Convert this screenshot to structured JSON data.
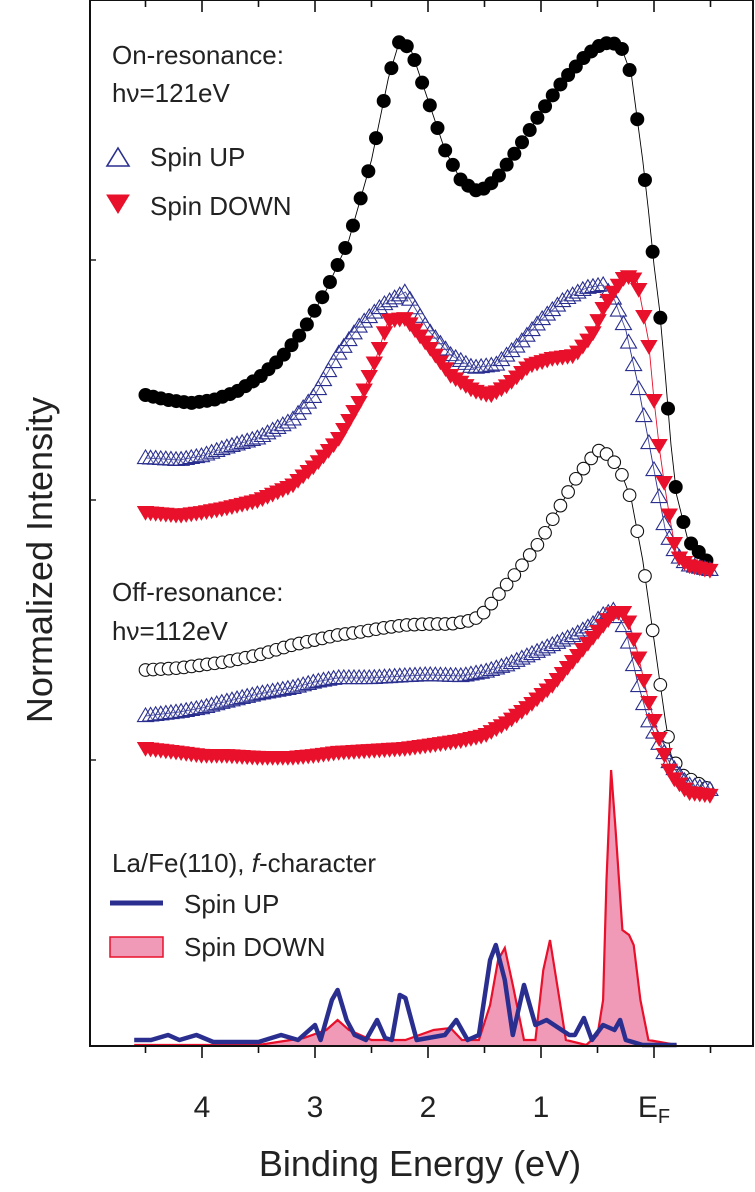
{
  "chart_data": {
    "type": "scatter",
    "xlabel": "Binding Energy (eV)",
    "ylabel": "Normalized Intensity",
    "x_reversed": true,
    "xlim": [
      4.5,
      -0.5
    ],
    "x_ticks": [
      {
        "value": 4,
        "label": "4"
      },
      {
        "value": 3,
        "label": "3"
      },
      {
        "value": 2,
        "label": "2"
      },
      {
        "value": 1,
        "label": "1"
      },
      {
        "value": 0,
        "label": "E",
        "sub": "F"
      }
    ],
    "y_units": "arbitrary (normalized intensity, vertically offset spectra)",
    "grid": false,
    "annotations": {
      "on_resonance": [
        "On-resonance:",
        "hν=121eV"
      ],
      "off_resonance": [
        "Off-resonance:",
        "hν=112eV"
      ],
      "calc_title": "La/Fe(110), ",
      "calc_title_italic": "f",
      "calc_title_end": "-character"
    },
    "legends": {
      "markers": [
        {
          "label": "Spin UP",
          "marker": "open-triangle-up",
          "color": "#2a2f8f"
        },
        {
          "label": "Spin DOWN",
          "marker": "filled-triangle-down",
          "color": "#e8102a"
        }
      ],
      "calc": [
        {
          "label": "Spin UP",
          "style": "line",
          "color": "#2a2f8f"
        },
        {
          "label": "Spin DOWN",
          "style": "filled-area",
          "color": "#f19ab8",
          "edge": "#e8102a"
        }
      ]
    },
    "colors": {
      "up": "#2a2f8f",
      "down": "#e8102a",
      "down_fill": "#f19ab8",
      "black": "#000000"
    },
    "series": [
      {
        "id": "on_total",
        "marker": "filled-circle",
        "points": [
          [
            4.5,
            395
          ],
          [
            4.3,
            400
          ],
          [
            4.1,
            403
          ],
          [
            3.9,
            400
          ],
          [
            3.7,
            392
          ],
          [
            3.5,
            378
          ],
          [
            3.3,
            358
          ],
          [
            3.1,
            330
          ],
          [
            2.9,
            290
          ],
          [
            2.7,
            240
          ],
          [
            2.5,
            160
          ],
          [
            2.35,
            78
          ],
          [
            2.25,
            40
          ],
          [
            2.15,
            50
          ],
          [
            2.0,
            100
          ],
          [
            1.85,
            150
          ],
          [
            1.7,
            182
          ],
          [
            1.55,
            192
          ],
          [
            1.4,
            180
          ],
          [
            1.2,
            148
          ],
          [
            1.0,
            112
          ],
          [
            0.8,
            80
          ],
          [
            0.6,
            55
          ],
          [
            0.45,
            43
          ],
          [
            0.3,
            44
          ],
          [
            0.2,
            75
          ],
          [
            0.1,
            160
          ],
          [
            0.05,
            210
          ],
          [
            0.0,
            265
          ],
          [
            -0.05,
            310
          ],
          [
            -0.1,
            375
          ],
          [
            -0.15,
            445
          ],
          [
            -0.2,
            495
          ],
          [
            -0.3,
            540
          ],
          [
            -0.5,
            565
          ]
        ]
      },
      {
        "id": "on_up",
        "marker": "open-triangle-up",
        "points": [
          [
            4.5,
            458
          ],
          [
            4.2,
            460
          ],
          [
            4.0,
            456
          ],
          [
            3.8,
            448
          ],
          [
            3.5,
            438
          ],
          [
            3.2,
            420
          ],
          [
            3.0,
            395
          ],
          [
            2.8,
            355
          ],
          [
            2.6,
            325
          ],
          [
            2.4,
            305
          ],
          [
            2.2,
            292
          ],
          [
            2.0,
            330
          ],
          [
            1.8,
            355
          ],
          [
            1.6,
            368
          ],
          [
            1.4,
            365
          ],
          [
            1.2,
            345
          ],
          [
            1.0,
            320
          ],
          [
            0.8,
            300
          ],
          [
            0.6,
            288
          ],
          [
            0.45,
            285
          ],
          [
            0.35,
            300
          ],
          [
            0.25,
            330
          ],
          [
            0.15,
            380
          ],
          [
            0.05,
            440
          ],
          [
            0.0,
            470
          ],
          [
            -0.05,
            500
          ],
          [
            -0.1,
            530
          ],
          [
            -0.2,
            555
          ],
          [
            -0.3,
            565
          ],
          [
            -0.5,
            570
          ]
        ]
      },
      {
        "id": "on_down",
        "marker": "filled-triangle-down",
        "points": [
          [
            4.5,
            512
          ],
          [
            4.2,
            515
          ],
          [
            4.0,
            512
          ],
          [
            3.8,
            508
          ],
          [
            3.5,
            500
          ],
          [
            3.2,
            485
          ],
          [
            3.0,
            465
          ],
          [
            2.8,
            440
          ],
          [
            2.6,
            400
          ],
          [
            2.45,
            355
          ],
          [
            2.35,
            320
          ],
          [
            2.2,
            318
          ],
          [
            2.0,
            345
          ],
          [
            1.8,
            375
          ],
          [
            1.6,
            390
          ],
          [
            1.45,
            395
          ],
          [
            1.3,
            385
          ],
          [
            1.1,
            365
          ],
          [
            0.9,
            358
          ],
          [
            0.7,
            355
          ],
          [
            0.55,
            335
          ],
          [
            0.45,
            308
          ],
          [
            0.35,
            290
          ],
          [
            0.25,
            275
          ],
          [
            0.15,
            280
          ],
          [
            0.05,
            340
          ],
          [
            0.0,
            400
          ],
          [
            -0.05,
            450
          ],
          [
            -0.1,
            490
          ],
          [
            -0.15,
            525
          ],
          [
            -0.2,
            555
          ],
          [
            -0.3,
            565
          ],
          [
            -0.5,
            570
          ]
        ]
      },
      {
        "id": "off_total",
        "marker": "open-circle",
        "points": [
          [
            4.5,
            670
          ],
          [
            4.2,
            668
          ],
          [
            4.0,
            665
          ],
          [
            3.8,
            662
          ],
          [
            3.5,
            655
          ],
          [
            3.2,
            645
          ],
          [
            3.0,
            640
          ],
          [
            2.8,
            635
          ],
          [
            2.6,
            632
          ],
          [
            2.4,
            628
          ],
          [
            2.2,
            625
          ],
          [
            2.0,
            624
          ],
          [
            1.8,
            624
          ],
          [
            1.6,
            620
          ],
          [
            1.5,
            612
          ],
          [
            1.4,
            598
          ],
          [
            1.2,
            570
          ],
          [
            1.0,
            540
          ],
          [
            0.9,
            520
          ],
          [
            0.8,
            500
          ],
          [
            0.7,
            480
          ],
          [
            0.6,
            465
          ],
          [
            0.5,
            450
          ],
          [
            0.4,
            455
          ],
          [
            0.3,
            470
          ],
          [
            0.2,
            500
          ],
          [
            0.1,
            560
          ],
          [
            0.0,
            640
          ],
          [
            -0.05,
            680
          ],
          [
            -0.1,
            720
          ],
          [
            -0.15,
            755
          ],
          [
            -0.25,
            775
          ],
          [
            -0.5,
            790
          ]
        ]
      },
      {
        "id": "off_up",
        "marker": "open-triangle-up",
        "points": [
          [
            4.5,
            716
          ],
          [
            4.2,
            712
          ],
          [
            4.0,
            708
          ],
          [
            3.8,
            702
          ],
          [
            3.5,
            694
          ],
          [
            3.2,
            688
          ],
          [
            3.0,
            682
          ],
          [
            2.8,
            678
          ],
          [
            2.5,
            678
          ],
          [
            2.2,
            676
          ],
          [
            2.0,
            675
          ],
          [
            1.7,
            676
          ],
          [
            1.5,
            672
          ],
          [
            1.3,
            665
          ],
          [
            1.1,
            655
          ],
          [
            0.9,
            645
          ],
          [
            0.7,
            635
          ],
          [
            0.55,
            625
          ],
          [
            0.45,
            615
          ],
          [
            0.35,
            610
          ],
          [
            0.25,
            630
          ],
          [
            0.15,
            680
          ],
          [
            0.05,
            720
          ],
          [
            -0.05,
            745
          ],
          [
            -0.15,
            765
          ],
          [
            -0.3,
            785
          ],
          [
            -0.5,
            790
          ]
        ]
      },
      {
        "id": "off_down",
        "marker": "filled-triangle-down",
        "points": [
          [
            4.5,
            748
          ],
          [
            4.2,
            752
          ],
          [
            4.0,
            755
          ],
          [
            3.8,
            755
          ],
          [
            3.5,
            757
          ],
          [
            3.2,
            757
          ],
          [
            3.0,
            755
          ],
          [
            2.8,
            752
          ],
          [
            2.5,
            750
          ],
          [
            2.2,
            748
          ],
          [
            2.0,
            745
          ],
          [
            1.7,
            740
          ],
          [
            1.5,
            735
          ],
          [
            1.3,
            722
          ],
          [
            1.1,
            705
          ],
          [
            0.9,
            685
          ],
          [
            0.75,
            665
          ],
          [
            0.6,
            645
          ],
          [
            0.45,
            625
          ],
          [
            0.35,
            612
          ],
          [
            0.25,
            612
          ],
          [
            0.15,
            650
          ],
          [
            0.05,
            700
          ],
          [
            -0.05,
            740
          ],
          [
            -0.15,
            775
          ],
          [
            -0.3,
            792
          ],
          [
            -0.5,
            795
          ]
        ]
      }
    ],
    "calc_up": [
      [
        4.6,
        1040
      ],
      [
        4.45,
        1040
      ],
      [
        4.3,
        1035
      ],
      [
        4.2,
        1040
      ],
      [
        4.05,
        1035
      ],
      [
        3.9,
        1042
      ],
      [
        3.5,
        1042
      ],
      [
        3.3,
        1035
      ],
      [
        3.15,
        1040
      ],
      [
        3.0,
        1025
      ],
      [
        2.95,
        1040
      ],
      [
        2.85,
        1000
      ],
      [
        2.8,
        990
      ],
      [
        2.72,
        1020
      ],
      [
        2.65,
        1035
      ],
      [
        2.55,
        1040
      ],
      [
        2.45,
        1020
      ],
      [
        2.38,
        1038
      ],
      [
        2.32,
        1040
      ],
      [
        2.25,
        995
      ],
      [
        2.2,
        998
      ],
      [
        2.1,
        1040
      ],
      [
        1.85,
        1035
      ],
      [
        1.75,
        1020
      ],
      [
        1.65,
        1040
      ],
      [
        1.55,
        1035
      ],
      [
        1.45,
        960
      ],
      [
        1.4,
        945
      ],
      [
        1.32,
        980
      ],
      [
        1.25,
        1035
      ],
      [
        1.2,
        1010
      ],
      [
        1.15,
        985
      ],
      [
        1.05,
        1025
      ],
      [
        0.95,
        1020
      ],
      [
        0.75,
        1035
      ],
      [
        0.7,
        1035
      ],
      [
        0.62,
        1018
      ],
      [
        0.55,
        1040
      ],
      [
        0.45,
        1025
      ],
      [
        0.35,
        1030
      ],
      [
        0.3,
        1020
      ],
      [
        0.25,
        1040
      ],
      [
        0.1,
        1045
      ],
      [
        -0.2,
        1045
      ]
    ],
    "calc_down": [
      [
        4.6,
        1045
      ],
      [
        3.5,
        1045
      ],
      [
        3.1,
        1038
      ],
      [
        2.9,
        1030
      ],
      [
        2.8,
        1020
      ],
      [
        2.7,
        1030
      ],
      [
        2.5,
        1040
      ],
      [
        2.2,
        1040
      ],
      [
        1.95,
        1030
      ],
      [
        1.8,
        1028
      ],
      [
        1.7,
        1040
      ],
      [
        1.55,
        1040
      ],
      [
        1.45,
        1005
      ],
      [
        1.38,
        960
      ],
      [
        1.32,
        948
      ],
      [
        1.25,
        985
      ],
      [
        1.15,
        1040
      ],
      [
        1.05,
        1040
      ],
      [
        0.98,
        970
      ],
      [
        0.92,
        940
      ],
      [
        0.85,
        990
      ],
      [
        0.78,
        1040
      ],
      [
        0.6,
        1045
      ],
      [
        0.5,
        1035
      ],
      [
        0.45,
        1000
      ],
      [
        0.42,
        880
      ],
      [
        0.38,
        770
      ],
      [
        0.34,
        830
      ],
      [
        0.28,
        930
      ],
      [
        0.22,
        935
      ],
      [
        0.18,
        945
      ],
      [
        0.12,
        1000
      ],
      [
        0.05,
        1040
      ],
      [
        -0.2,
        1045
      ]
    ]
  }
}
